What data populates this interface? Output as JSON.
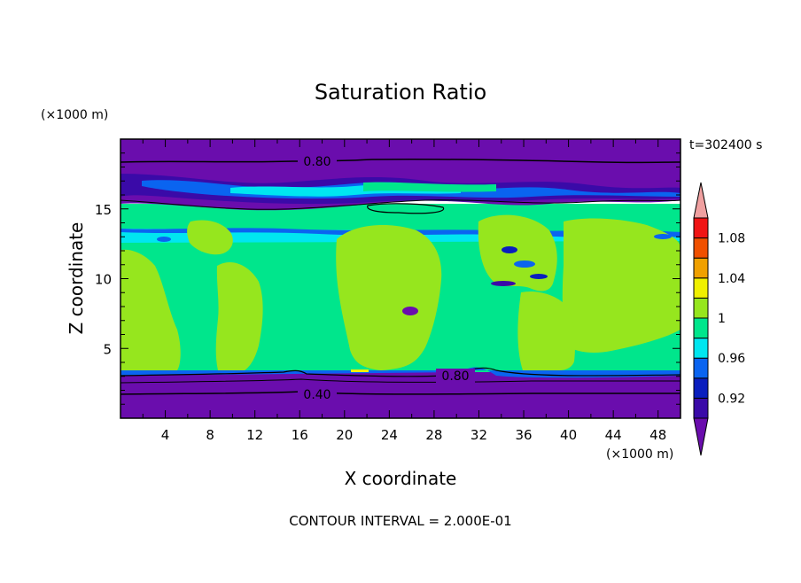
{
  "chart_data": {
    "type": "heatmap",
    "title": "Saturation Ratio",
    "xlabel": "X coordinate",
    "ylabel": "Z coordinate",
    "x_unit": "(×1000 m)",
    "y_unit": "(×1000 m)",
    "time_label": "t=302400 s",
    "footer": "CONTOUR INTERVAL = 2.000E-01",
    "xlim": [
      0,
      50
    ],
    "ylim": [
      0,
      20
    ],
    "x_ticks": [
      "4",
      "8",
      "12",
      "16",
      "20",
      "24",
      "28",
      "32",
      "36",
      "40",
      "44",
      "48"
    ],
    "y_ticks": [
      "5",
      "10",
      "15"
    ],
    "contour_labels": [
      "0.80",
      "0.80",
      "0.40"
    ],
    "colorbar": {
      "labels": [
        "1.08",
        "1.04",
        "1",
        "0.96",
        "0.92"
      ],
      "levels": [
        0.9,
        0.92,
        0.94,
        0.96,
        0.98,
        1.0,
        1.02,
        1.04,
        1.06,
        1.08,
        1.1
      ],
      "colors": [
        "#6a0dad",
        "#3a0aa8",
        "#0a1ebe",
        "#0a64f0",
        "#00e6f0",
        "#00e68c",
        "#96e61e",
        "#f0f000",
        "#f0a000",
        "#f05000",
        "#f01414",
        "#f0a0a0"
      ]
    },
    "regions": [
      {
        "x0": 0,
        "x1": 50,
        "z0": 0,
        "z1": 3.2,
        "value": 0.6
      },
      {
        "x0": 0,
        "x1": 50,
        "z0": 3.2,
        "z1": 12.5,
        "value": 0.99
      },
      {
        "x0": 0,
        "x1": 50,
        "z0": 12.5,
        "z1": 15.8,
        "value": 0.99
      },
      {
        "x0": 0,
        "x1": 50,
        "z0": 15.8,
        "z1": 18.3,
        "value": 0.93
      },
      {
        "x0": 0,
        "x1": 50,
        "z0": 18.3,
        "z1": 20,
        "value": 0.8
      }
    ]
  }
}
